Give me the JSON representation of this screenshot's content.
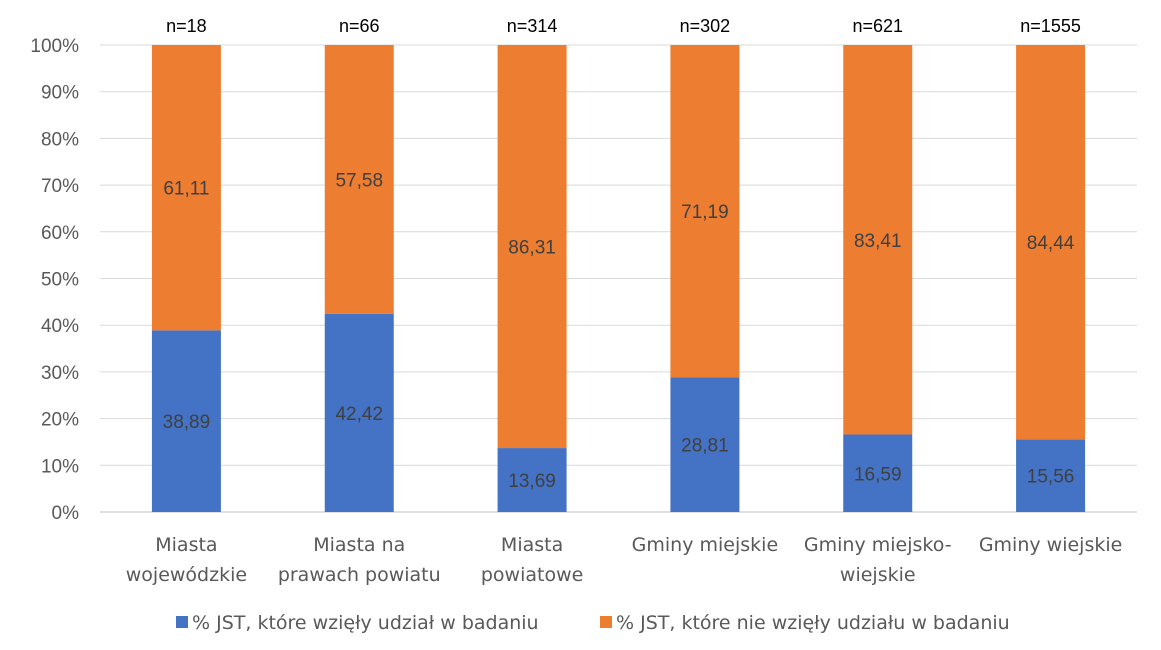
{
  "chart_data": {
    "type": "bar",
    "stacked": true,
    "percent": true,
    "categories": [
      [
        "Miasta",
        "wojewódzkie"
      ],
      [
        "Miasta na",
        "prawach powiatu"
      ],
      [
        "Miasta",
        "powiatowe"
      ],
      [
        "Gminy miejskie"
      ],
      [
        "Gminy miejsko-",
        "wiejskie"
      ],
      [
        "Gminy wiejskie"
      ]
    ],
    "n_labels": [
      "n=18",
      "n=66",
      "n=314",
      "n=302",
      "n=621",
      "n=1555"
    ],
    "series": [
      {
        "name": "% JST, które wzięły udział w badaniu",
        "color": "#4472c4",
        "values": [
          38.89,
          42.42,
          13.69,
          28.81,
          16.59,
          15.56
        ],
        "labels": [
          "38,89",
          "42,42",
          "13,69",
          "28,81",
          "16,59",
          "15,56"
        ]
      },
      {
        "name": "% JST, które nie wzięły udziału w badaniu",
        "color": "#ed7d31",
        "values": [
          61.11,
          57.58,
          86.31,
          71.19,
          83.41,
          84.44
        ],
        "labels": [
          "61,11",
          "57,58",
          "86,31",
          "71,19",
          "83,41",
          "84,44"
        ]
      }
    ],
    "y_ticks": [
      "0%",
      "10%",
      "20%",
      "30%",
      "40%",
      "50%",
      "60%",
      "70%",
      "80%",
      "90%",
      "100%"
    ],
    "ylim": [
      0,
      100
    ],
    "grid": true,
    "legend_position": "bottom"
  }
}
